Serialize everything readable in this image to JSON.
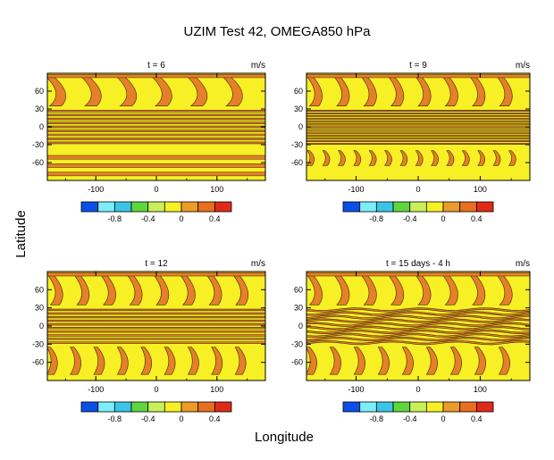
{
  "chart_data": {
    "type": "heatmap",
    "title": "UZIM Test 42, OMEGA850 hPa",
    "xlabel": "Longitude",
    "ylabel": "Latitude",
    "units": "m/s",
    "x_ticks": [
      "-100",
      "0",
      "100"
    ],
    "y_ticks": [
      "60",
      "30",
      "0",
      "-30",
      "-60"
    ],
    "colorbar": {
      "labels": [
        "-0.8",
        "-0.4",
        "0",
        "0.4"
      ],
      "colors": [
        "#0a4fe6",
        "#7ceefa",
        "#39c6e6",
        "#5fd63d",
        "#c9f05a",
        "#f6f025",
        "#ec9a2a",
        "#e67020",
        "#e02a18"
      ]
    },
    "panels": [
      {
        "title": "t = 6",
        "units": "m/s"
      },
      {
        "title": "t = 9",
        "units": "m/s"
      },
      {
        "title": "t = 12",
        "units": "m/s"
      },
      {
        "title": "t = 15 days - 4 h",
        "units": "m/s"
      }
    ],
    "fill_colors": {
      "positive": "#e67f2a",
      "near_zero": "#f6f025",
      "stroke": "#3c2a05"
    }
  }
}
